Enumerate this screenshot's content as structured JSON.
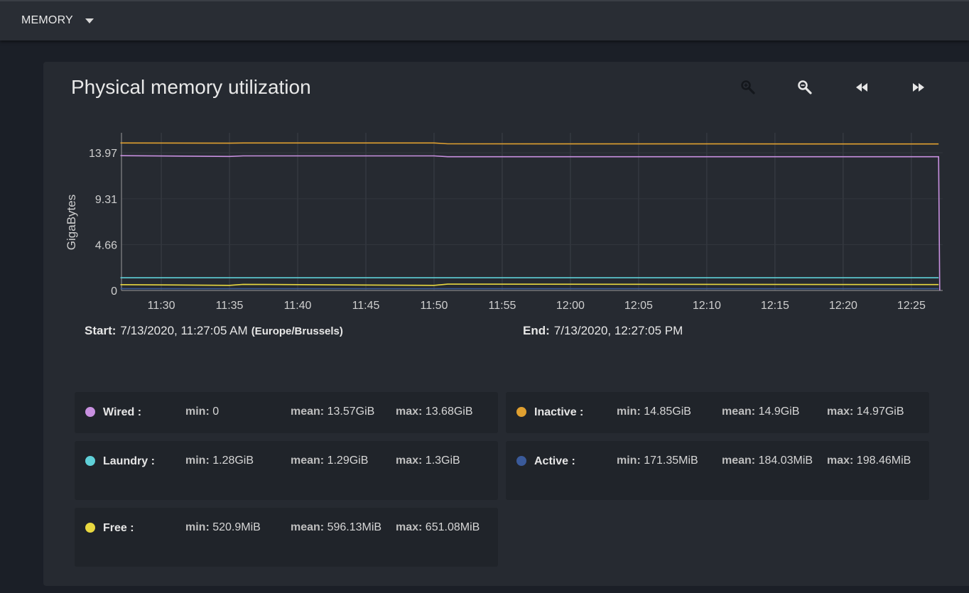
{
  "toolbar": {
    "selector_label": "MEMORY",
    "selector_icon": "caret-down-icon"
  },
  "card": {
    "title": "Physical memory utilization",
    "tools": [
      {
        "name": "zoom-in-icon",
        "enabled": false
      },
      {
        "name": "zoom-out-icon",
        "enabled": true
      },
      {
        "name": "rewind-icon",
        "enabled": true
      },
      {
        "name": "fast-forward-icon",
        "enabled": true
      }
    ]
  },
  "chart_data": {
    "type": "line",
    "ylabel": "GigaBytes",
    "yticks": [
      "0",
      "4.66",
      "9.31",
      "13.97"
    ],
    "ytick_values": [
      0,
      4.66,
      9.31,
      13.97
    ],
    "ylim": [
      0,
      16.0
    ],
    "xticks": [
      "11:30",
      "11:35",
      "11:40",
      "11:45",
      "11:50",
      "11:55",
      "12:00",
      "12:05",
      "12:10",
      "12:15",
      "12:20",
      "12:25"
    ],
    "xlim_minutes": [
      27.08,
      87.3
    ],
    "grid": true,
    "series": [
      {
        "name": "Inactive",
        "color": "#e0a030",
        "x": [
          "11:27",
          "11:35",
          "11:36",
          "11:50",
          "11:51",
          "12:27"
        ],
        "y": [
          14.97,
          14.95,
          14.97,
          14.97,
          14.88,
          14.87
        ]
      },
      {
        "name": "Wired",
        "color": "#c890e0",
        "x": [
          "11:27",
          "11:35",
          "11:36",
          "11:50",
          "11:51",
          "12:27",
          "12:27:05"
        ],
        "y": [
          13.68,
          13.6,
          13.66,
          13.66,
          13.57,
          13.57,
          0
        ]
      },
      {
        "name": "Laundry",
        "color": "#5fd0d8",
        "x": [
          "11:27",
          "12:27"
        ],
        "y": [
          1.29,
          1.29
        ]
      },
      {
        "name": "Free",
        "color": "#e8d840",
        "x": [
          "11:27",
          "11:35",
          "11:36",
          "11:50",
          "11:51",
          "12:27"
        ],
        "y": [
          0.59,
          0.52,
          0.62,
          0.52,
          0.64,
          0.6
        ]
      },
      {
        "name": "Active",
        "color": "#3a5a9a",
        "x": [
          "11:27",
          "12:27"
        ],
        "y": [
          0.18,
          0.18
        ]
      }
    ]
  },
  "period": {
    "start_label": "Start:",
    "start_value": "7/13/2020, 11:27:05 AM",
    "timezone": "(Europe/Brussels)",
    "end_label": "End:",
    "end_value": "7/13/2020, 12:27:05 PM"
  },
  "legend": [
    {
      "name": "Wired :",
      "color": "#c890e0",
      "min_k": "min:",
      "min": "0",
      "mean_k": "mean:",
      "mean": "13.57GiB",
      "max_k": "max:",
      "max": "13.68GiB"
    },
    {
      "name": "Inactive :",
      "color": "#e0a030",
      "min_k": "min:",
      "min": "14.85GiB",
      "mean_k": "mean:",
      "mean": "14.9GiB",
      "max_k": "max:",
      "max": "14.97GiB"
    },
    {
      "name": "Laundry :",
      "color": "#5fd0d8",
      "min_k": "min:",
      "min": "1.28GiB",
      "mean_k": "mean:",
      "mean": "1.29GiB",
      "max_k": "max:",
      "max": "1.3GiB"
    },
    {
      "name": "Active :",
      "color": "#3a5a9a",
      "min_k": "min:",
      "min": "171.35MiB",
      "mean_k": "mean:",
      "mean": "184.03MiB",
      "max_k": "max:",
      "max": "198.46MiB"
    },
    {
      "name": "Free :",
      "color": "#e8d840",
      "min_k": "min:",
      "min": "520.9MiB",
      "mean_k": "mean:",
      "mean": "596.13MiB",
      "max_k": "max:",
      "max": "651.08MiB"
    }
  ]
}
